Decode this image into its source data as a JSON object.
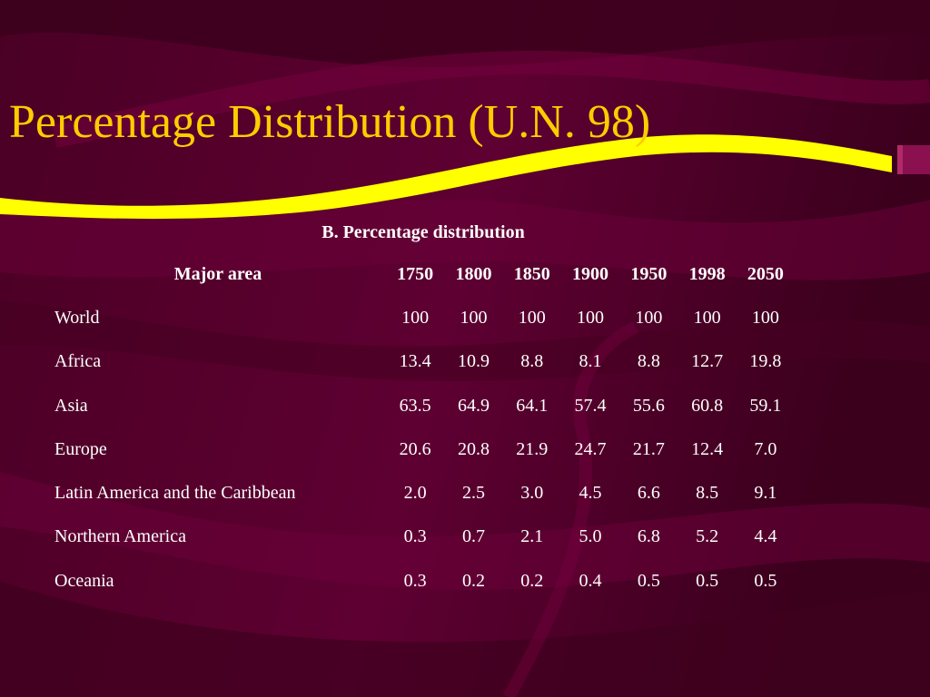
{
  "title": "Percentage Distribution (U.N. 98)",
  "table": {
    "caption": "B. Percentage distribution",
    "area_header": "Major area",
    "years": [
      "1750",
      "1800",
      "1850",
      "1900",
      "1950",
      "1998",
      "2050"
    ],
    "rows": [
      {
        "area": "World",
        "values": [
          "100",
          "100",
          "100",
          "100",
          "100",
          "100",
          "100"
        ]
      },
      {
        "area": "Africa",
        "values": [
          "13.4",
          "10.9",
          "8.8",
          "8.1",
          "8.8",
          "12.7",
          "19.8"
        ]
      },
      {
        "area": "Asia",
        "values": [
          "63.5",
          "64.9",
          "64.1",
          "57.4",
          "55.6",
          "60.8",
          "59.1"
        ]
      },
      {
        "area": "Europe",
        "values": [
          "20.6",
          "20.8",
          "21.9",
          "24.7",
          "21.7",
          "12.4",
          "7.0"
        ]
      },
      {
        "area": "Latin America and the Caribbean",
        "values": [
          "2.0",
          "2.5",
          "3.0",
          "4.5",
          "6.6",
          "8.5",
          "9.1"
        ]
      },
      {
        "area": "Northern America",
        "values": [
          "0.3",
          "0.7",
          "2.1",
          "5.0",
          "6.8",
          "5.2",
          "4.4"
        ]
      },
      {
        "area": "Oceania",
        "values": [
          "0.3",
          "0.2",
          "0.2",
          "0.4",
          "0.5",
          "0.5",
          "0.5"
        ]
      }
    ]
  },
  "colors": {
    "background": "#5c0030",
    "title": "#ffcc00",
    "swoosh": "#ffff00",
    "text": "#ffffff"
  }
}
